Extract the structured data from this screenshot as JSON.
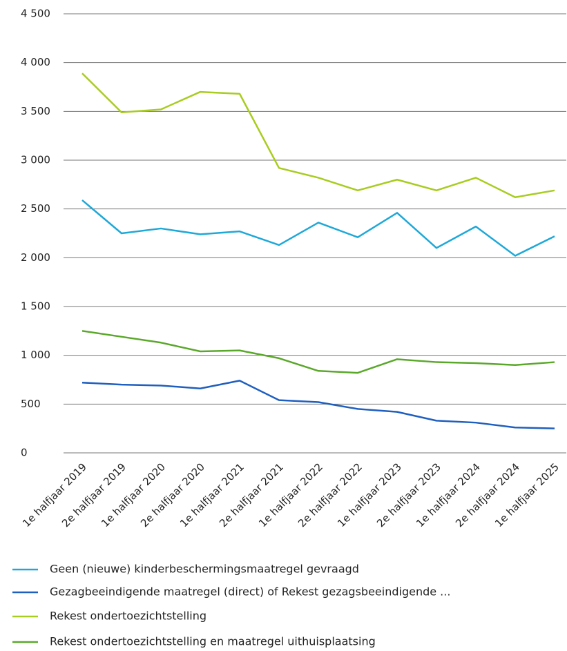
{
  "chart_data": {
    "type": "line",
    "categories": [
      "1e halfjaar 2019",
      "2e halfjaar 2019",
      "1e halfjaar 2020",
      "2e halfjaar 2020",
      "1e halfjaar 2021",
      "2e halfjaar 2021",
      "1e halfjaar 2022",
      "2e halfjaar 2022",
      "1e halfjaar 2023",
      "2e halfjaar 2023",
      "1e halfjaar 2024",
      "2e halfjaar 2024",
      "1e halfjaar 2025"
    ],
    "series": [
      {
        "name": "Geen (nieuwe) kinderbeschermingsmaatregel gevraagd",
        "color": "#1ea8d8",
        "values": [
          2590,
          2250,
          2300,
          2240,
          2270,
          2130,
          2360,
          2210,
          2460,
          2100,
          2320,
          2020,
          2220
        ]
      },
      {
        "name": "Gezagbeeindigende maatregel (direct) of Rekest gezagsbeeindigende ...",
        "color": "#1f5fbf",
        "values": [
          720,
          700,
          690,
          660,
          740,
          540,
          520,
          450,
          420,
          330,
          310,
          260,
          250
        ]
      },
      {
        "name": "Rekest ondertoezichtstelling",
        "color": "#a8cc20",
        "values": [
          3890,
          3490,
          3520,
          3700,
          3680,
          2920,
          2820,
          2690,
          2800,
          2690,
          2820,
          2620,
          2690
        ]
      },
      {
        "name": "Rekest ondertoezichtstelling en maatregel uithuisplaatsing",
        "color": "#5aa82a",
        "values": [
          1250,
          1190,
          1130,
          1040,
          1050,
          970,
          840,
          820,
          960,
          930,
          920,
          900,
          930
        ]
      }
    ],
    "ylim": [
      0,
      4500
    ],
    "yticks": [
      0,
      500,
      {
        "value": 1000,
        "label": "1 000"
      },
      {
        "value": 1500,
        "label": "1 500"
      },
      {
        "value": 2000,
        "label": "2 000"
      },
      {
        "value": 2500,
        "label": "2 500"
      },
      {
        "value": 3000,
        "label": "3 000"
      },
      {
        "value": 3500,
        "label": "3 500"
      },
      {
        "value": 4000,
        "label": "4 000"
      },
      {
        "value": 4500,
        "label": "4 500"
      }
    ],
    "grid": true
  }
}
